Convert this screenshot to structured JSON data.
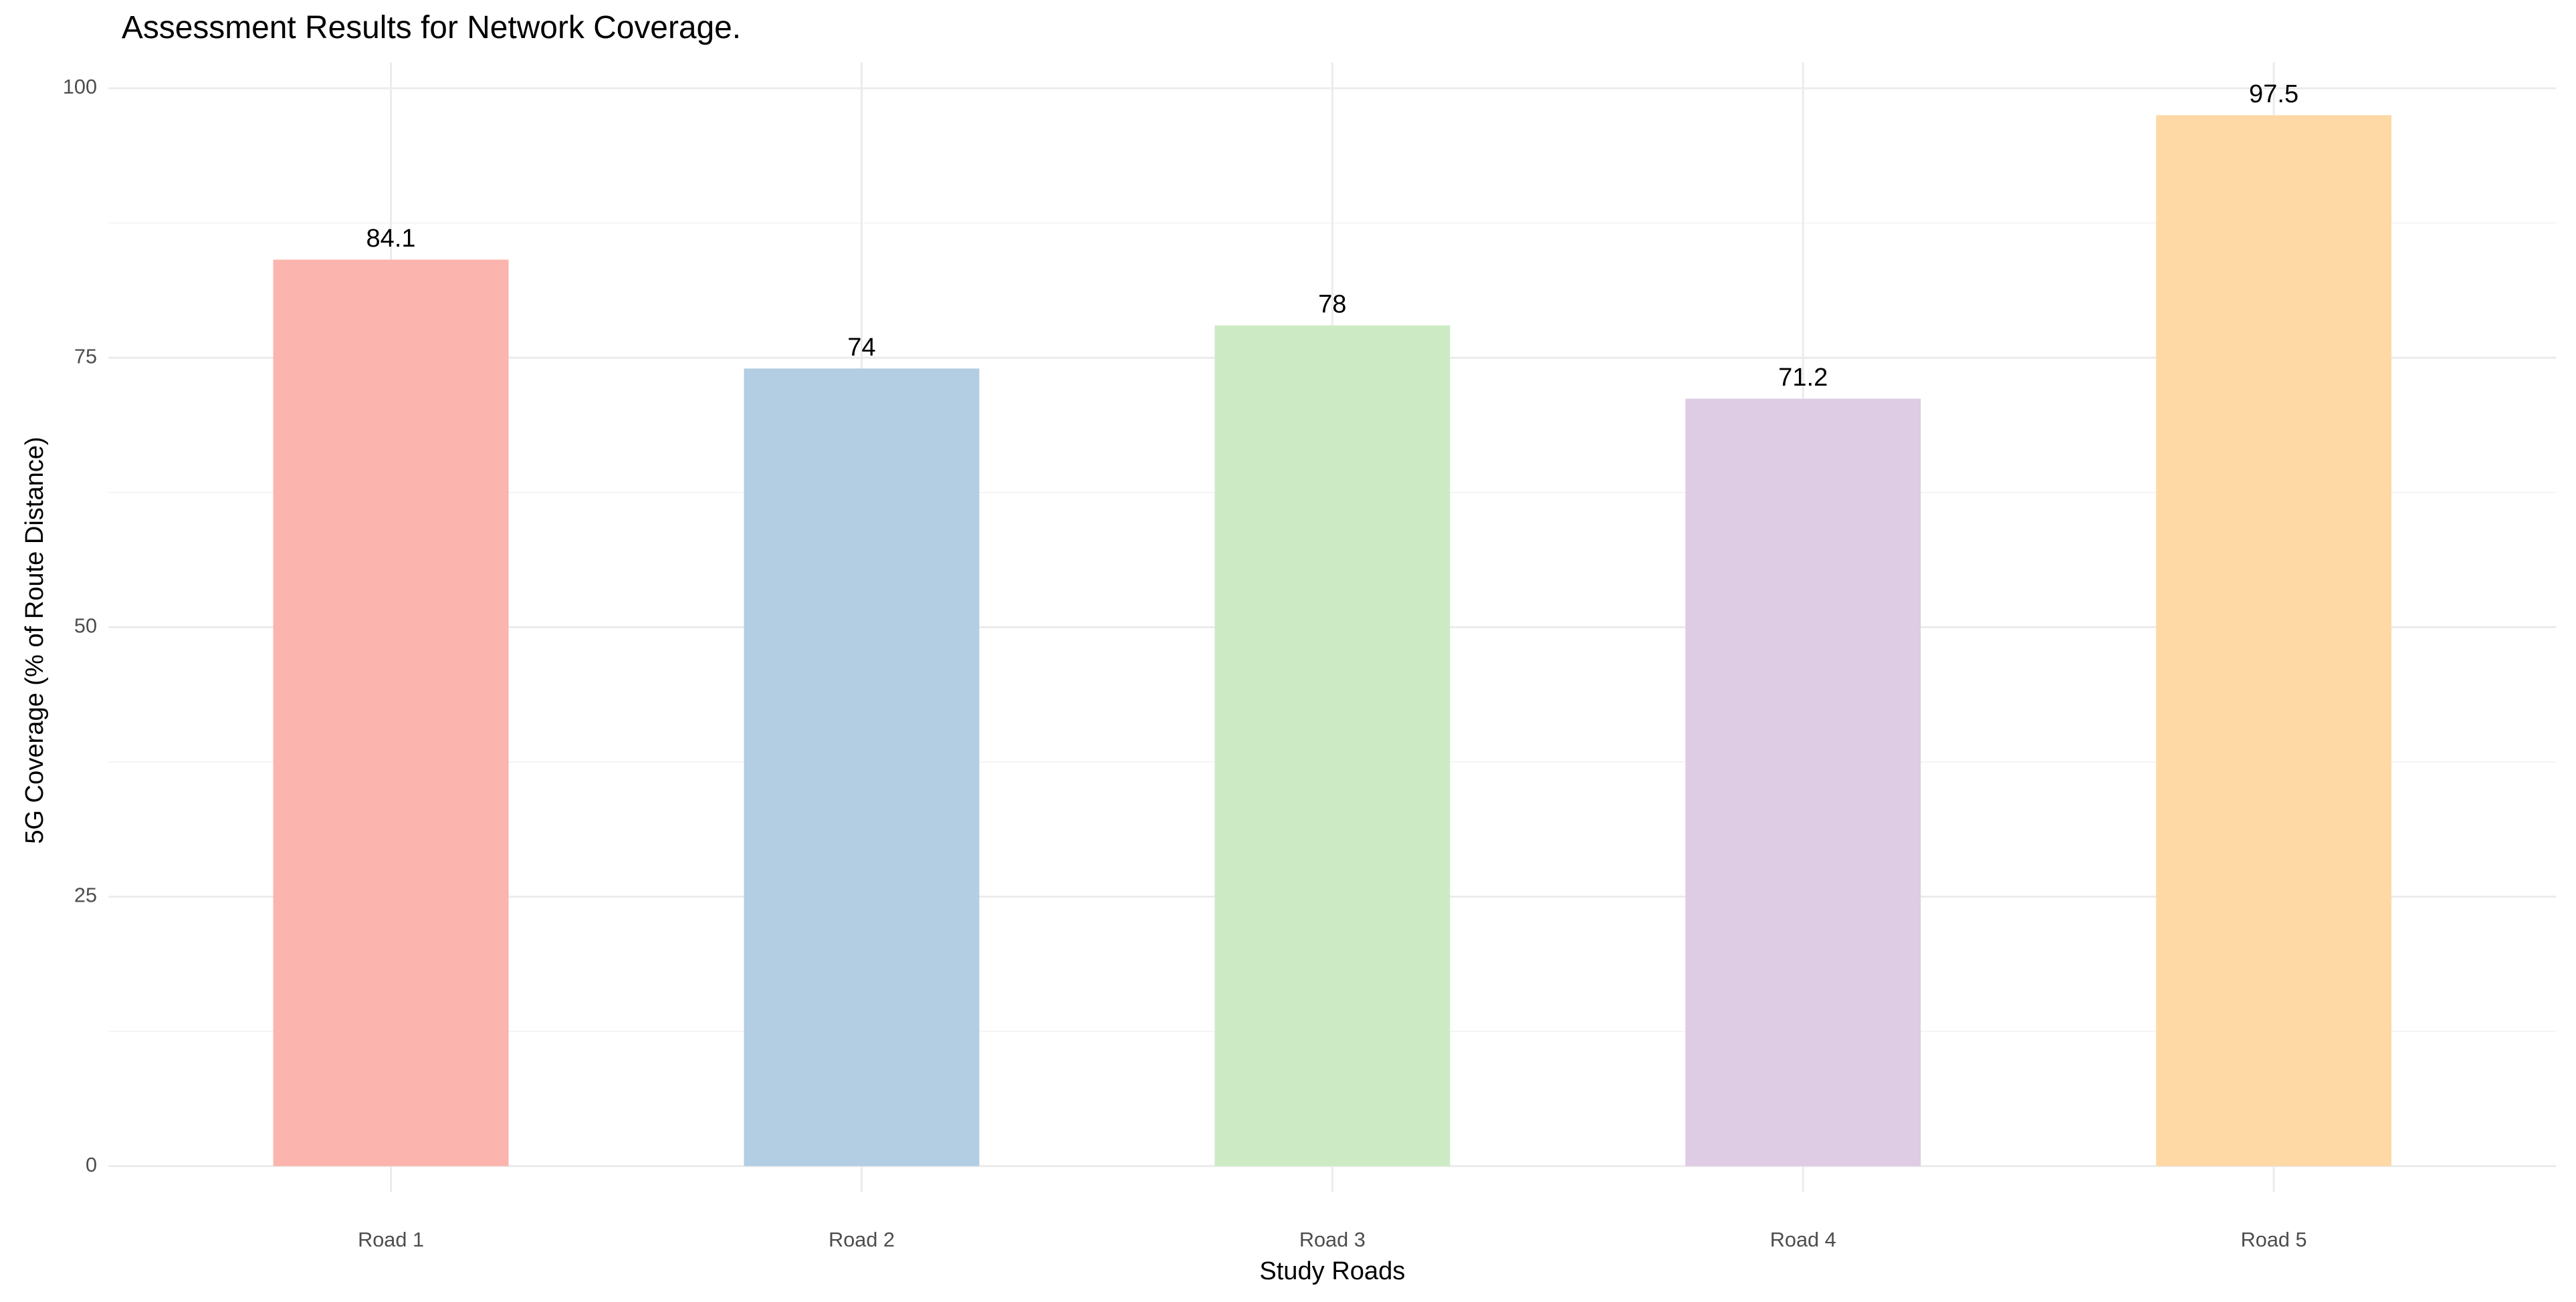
{
  "chart_data": {
    "type": "bar",
    "title": "Assessment Results for Network Coverage.",
    "x_label": "Study Roads",
    "y_label": "5G Coverage (% of Route Distance)",
    "categories": [
      "Road 1",
      "Road 2",
      "Road 3",
      "Road 4",
      "Road 5"
    ],
    "values": [
      84.1,
      74,
      78,
      71.2,
      97.5
    ],
    "colors": [
      "#FBB4AE",
      "#B3CDE3",
      "#CCEBC5",
      "#DECBE4",
      "#FED9A6"
    ],
    "ylim": [
      -2.4,
      102.4
    ],
    "yticks": [
      0,
      25,
      50,
      75,
      100
    ],
    "minor_yticks": [
      12.5,
      37.5,
      62.5,
      87.5
    ],
    "grid": true,
    "value_labels_shown": true
  }
}
